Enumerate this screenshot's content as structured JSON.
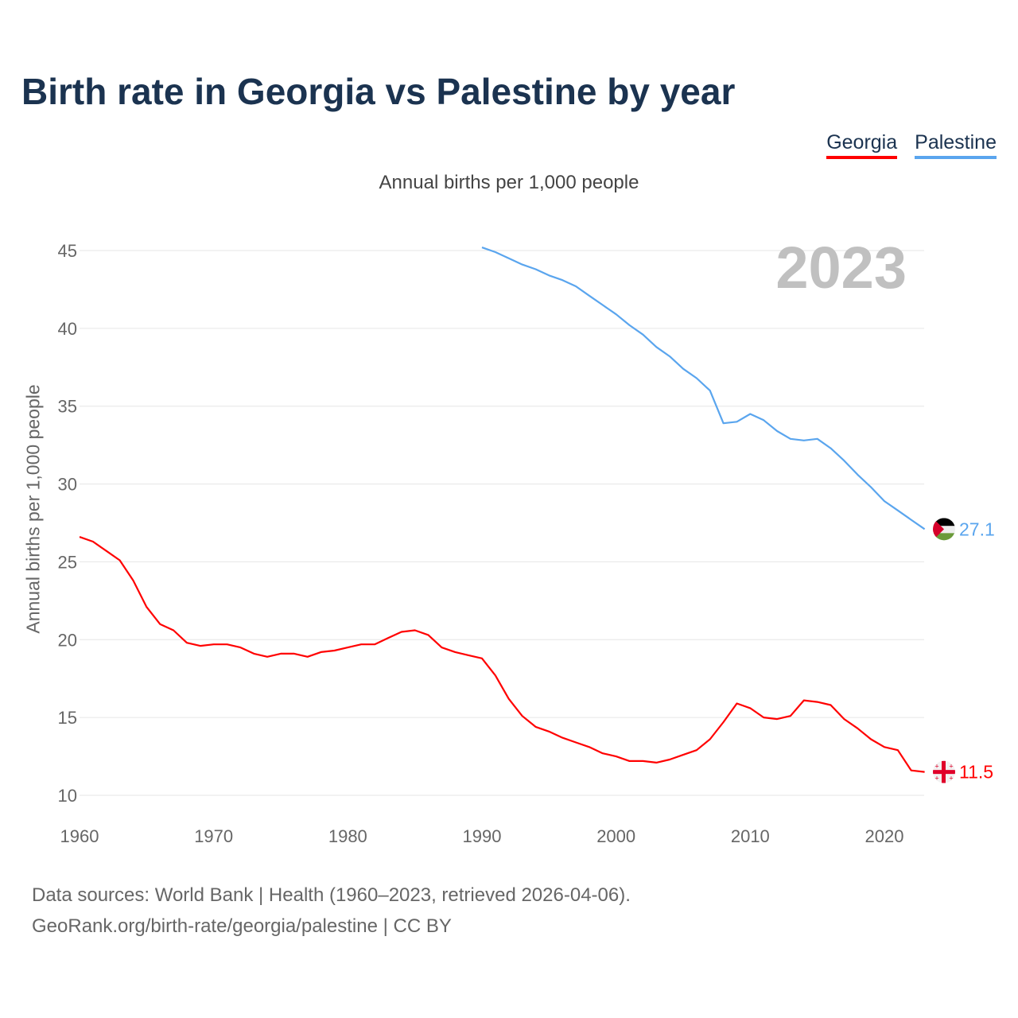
{
  "title": "Birth rate in Georgia vs Palestine by year",
  "legend": [
    {
      "name": "Georgia",
      "color": "#ff0000"
    },
    {
      "name": "Palestine",
      "color": "#5aa5ee"
    }
  ],
  "footer": {
    "line1": "Data sources: World Bank | Health (1960–2023, retrieved 2026-04-06).",
    "line2": "GeoRank.org/birth-rate/georgia/palestine | CC BY"
  },
  "chart_data": {
    "type": "line",
    "title": "Birth rate in Georgia vs Palestine by year",
    "subtitle": "Annual births per 1,000 people",
    "ylabel": "Annual births per 1,000 people",
    "xlabel": "",
    "year_label": "2023",
    "xlim": [
      1960,
      2023
    ],
    "ylim": [
      10,
      45
    ],
    "xticks": [
      1960,
      1970,
      1980,
      1990,
      2000,
      2010,
      2020
    ],
    "yticks": [
      10,
      15,
      20,
      25,
      30,
      35,
      40,
      45
    ],
    "grid": true,
    "legend_position": "top-right",
    "series": [
      {
        "name": "Georgia",
        "color": "#ff0000",
        "start": 1960,
        "end_label": "11.5",
        "values": [
          26.6,
          26.3,
          25.7,
          25.1,
          23.8,
          22.1,
          21.0,
          20.6,
          19.8,
          19.6,
          19.7,
          19.7,
          19.5,
          19.1,
          18.9,
          19.1,
          19.1,
          18.9,
          19.2,
          19.3,
          19.5,
          19.7,
          19.7,
          20.1,
          20.5,
          20.6,
          20.3,
          19.5,
          19.2,
          19.0,
          18.8,
          17.7,
          16.2,
          15.1,
          14.4,
          14.1,
          13.7,
          13.4,
          13.1,
          12.7,
          12.5,
          12.2,
          12.2,
          12.1,
          12.3,
          12.6,
          12.9,
          13.6,
          14.7,
          15.9,
          15.6,
          15.0,
          14.9,
          15.1,
          16.1,
          16.0,
          15.8,
          14.9,
          14.3,
          13.6,
          13.1,
          12.9,
          11.6,
          11.5
        ]
      },
      {
        "name": "Palestine",
        "color": "#5aa5ee",
        "start": 1990,
        "end_label": "27.1",
        "values": [
          45.2,
          44.9,
          44.5,
          44.1,
          43.8,
          43.4,
          43.1,
          42.7,
          42.1,
          41.5,
          40.9,
          40.2,
          39.6,
          38.8,
          38.2,
          37.4,
          36.8,
          36.0,
          33.9,
          34.0,
          34.5,
          34.1,
          33.4,
          32.9,
          32.8,
          32.9,
          32.3,
          31.5,
          30.6,
          29.8,
          28.9,
          28.3,
          27.7,
          27.1
        ]
      }
    ]
  }
}
